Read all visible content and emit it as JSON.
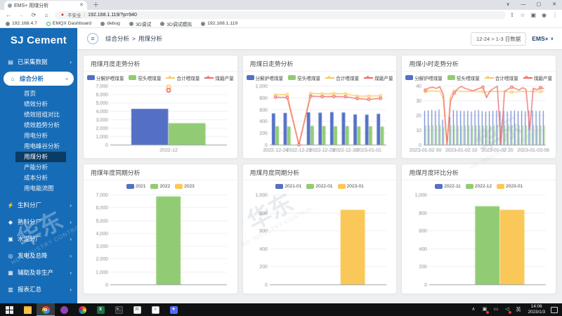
{
  "icons": {
    "back": "←",
    "forward": "→",
    "reload": "⟳",
    "home": "⌂",
    "warning": "▲",
    "divider": "|",
    "share": "⇧",
    "star": "☆",
    "side_panel": "▣",
    "profile": "◉",
    "menu": "⋮",
    "tab_search": "∨",
    "minimize": "—",
    "maximize": "▢",
    "close": "✕",
    "plus": "＋",
    "hamburger": "≡",
    "chevron_right": "›",
    "caret_down": "∨"
  },
  "browser": {
    "tab_title": "EMS+ 用煤分析",
    "security_label": "不安全",
    "url": "192.168.1.119/?p=940",
    "bookmarks": [
      "192.168.4.7",
      "EMQX Dashboard",
      "debug",
      "3D调试",
      "3D调试模拟",
      "192.168.1.119"
    ]
  },
  "header": {
    "brand": "SJ Cement",
    "breadcrumb": {
      "parent": "综合分析",
      "separator": ">",
      "current": "用煤分析"
    },
    "date_range_button": "12-24 > 1-3 日数据",
    "profile_label": "EMS+"
  },
  "sidebar": {
    "icon_glyphs": {
      "database-icon": "▤",
      "home-icon": "⌂",
      "lightning-icon": "⚡",
      "drop-icon": "◆",
      "cement-plant-icon": "▣",
      "power-icon": "◎",
      "auxiliary-icon": "▦",
      "report-icon": "▥"
    },
    "groups": [
      {
        "label": "已采集数据",
        "icon": "database-icon",
        "expanded": false
      },
      {
        "label": "综合分析",
        "icon": "home-icon",
        "expanded": true,
        "active": true,
        "children": [
          "首页",
          "绩效分析",
          "绩效班组对比",
          "绩效趋势分析",
          "用电分析",
          "用电峰谷分析",
          "用煤分析",
          "产能分析",
          "成本分析",
          "用电能流图"
        ],
        "selected": "用煤分析"
      },
      {
        "label": "生料分厂",
        "icon": "lightning-icon",
        "expanded": false
      },
      {
        "label": "熟料分厂",
        "icon": "drop-icon",
        "expanded": false
      },
      {
        "label": "水泥分厂",
        "icon": "cement-plant-icon",
        "expanded": false
      },
      {
        "label": "发电及总降",
        "icon": "power-icon",
        "expanded": false
      },
      {
        "label": "辅助及非生产",
        "icon": "auxiliary-icon",
        "expanded": false
      },
      {
        "label": "报表汇总",
        "icon": "report-icon",
        "expanded": false
      }
    ]
  },
  "palette": {
    "blue": "#5470c6",
    "green": "#91cc75",
    "yellow": "#fac858",
    "red": "#ee6666"
  },
  "watermark": {
    "cn": "华东",
    "en": "HD INDUSTRY CONTROL"
  },
  "chart_data": [
    {
      "id": "monthly-trend",
      "title": "用煤月度走势分析",
      "type": "bar",
      "categories": [
        "2022-12"
      ],
      "ylim": [
        0,
        7000
      ],
      "ystep": 1000,
      "grid": true,
      "legend_position": "top",
      "series": [
        {
          "name": "分解炉喂煤量",
          "type": "bar",
          "color": "#5470c6",
          "values": [
            4250
          ]
        },
        {
          "name": "窑头喂煤量",
          "type": "bar",
          "color": "#91cc75",
          "values": [
            2550
          ]
        },
        {
          "name": "合计喂煤量",
          "type": "scatter",
          "color": "#fac858",
          "values": [
            6850
          ]
        },
        {
          "name": "煤磨产量",
          "type": "scatter",
          "color": "#ee6666",
          "values": [
            6450
          ]
        }
      ]
    },
    {
      "id": "daily-trend",
      "title": "用煤日走势分析",
      "type": "bar",
      "categories": [
        "2022-12-24",
        "2022-12-25",
        "2022-12-26",
        "2022-12-27",
        "2022-12-28",
        "2022-12-29",
        "2022-12-30",
        "2022-12-31",
        "2023-01-01",
        "2023-01-02"
      ],
      "xtick_every": 2,
      "ylim": [
        0,
        1000
      ],
      "ystep": 200,
      "grid": true,
      "legend_position": "top",
      "series": [
        {
          "name": "分解炉喂煤量",
          "type": "bar",
          "color": "#5470c6",
          "values": [
            530,
            538,
            0,
            548,
            542,
            552,
            545,
            512,
            508,
            522
          ]
        },
        {
          "name": "窑头喂煤量",
          "type": "bar",
          "color": "#91cc75",
          "values": [
            312,
            308,
            0,
            318,
            315,
            312,
            315,
            310,
            312,
            306
          ]
        },
        {
          "name": "合计喂煤量",
          "type": "line",
          "color": "#fac858",
          "values": [
            845,
            850,
            0,
            868,
            860,
            866,
            862,
            824,
            822,
            830
          ]
        },
        {
          "name": "煤磨产量",
          "type": "line",
          "color": "#ee6666",
          "values": [
            806,
            800,
            0,
            822,
            815,
            818,
            812,
            782,
            766,
            784
          ]
        }
      ]
    },
    {
      "id": "hourly-trend",
      "title": "用煤小时走势分析",
      "type": "bar",
      "n_points": 34,
      "xticks": [
        {
          "i": 0,
          "label": "2023-01-02 00"
        },
        {
          "i": 10,
          "label": "2023-01-02 10"
        },
        {
          "i": 20,
          "label": "2023-01-02 20"
        },
        {
          "i": 30,
          "label": "2023-01-03 06"
        }
      ],
      "ylim": [
        0,
        40
      ],
      "ystep": 10,
      "grid": true,
      "legend_position": "top",
      "series": [
        {
          "name": "分解炉喂煤量",
          "type": "bar",
          "color": "#5470c6",
          "values": [
            23,
            23.2,
            23.5,
            23,
            23.8,
            17,
            0,
            19,
            23.5,
            23.2,
            23,
            22.8,
            23,
            22.5,
            23.2,
            23.5,
            22.8,
            22.5,
            22.8,
            23,
            23.2,
            22.8,
            23,
            22.6,
            23,
            23.2,
            22.8,
            23,
            22.6,
            23,
            23.2,
            22.8,
            23,
            23
          ]
        },
        {
          "name": "窑头喂煤量",
          "type": "bar",
          "color": "#91cc75",
          "values": [
            13,
            13,
            13.2,
            13,
            13.2,
            12,
            6,
            13,
            13.2,
            13,
            13,
            13,
            13.2,
            13,
            13,
            13.2,
            13,
            13,
            13,
            13.2,
            13,
            13,
            13.2,
            13,
            13,
            13,
            13.2,
            13,
            13,
            13,
            13.2,
            13,
            13,
            13
          ]
        },
        {
          "name": "合计喂煤量",
          "type": "line",
          "color": "#fac858",
          "values": [
            36,
            36.3,
            36.5,
            36.2,
            36.5,
            31,
            0,
            33,
            36.4,
            36.5,
            36.2,
            36,
            36.2,
            36.4,
            36,
            36.1,
            36,
            35.8,
            36,
            36.1,
            36,
            36,
            36.2,
            35.8,
            35.6,
            35.8,
            36,
            36.1,
            36,
            36,
            36.2,
            36,
            36,
            36.1
          ]
        },
        {
          "name": "煤磨产量",
          "type": "line",
          "color": "#ee6666",
          "values": [
            37,
            38.5,
            39,
            38.2,
            39.2,
            34,
            0,
            30,
            35,
            38,
            39.5,
            38.2,
            37.5,
            36.5,
            37.2,
            38.2,
            39,
            32,
            36.5,
            38.2,
            39.5,
            0,
            36,
            37.6,
            39,
            38.2,
            37,
            38.6,
            37.5,
            10,
            38.2,
            37.2,
            38.6,
            38
          ]
        }
      ]
    },
    {
      "id": "yearly-yoy",
      "title": "用煤年度同期分析",
      "type": "bar",
      "categories": [
        ""
      ],
      "ylim": [
        0,
        7000
      ],
      "ystep": 1000,
      "grid": true,
      "legend_position": "top",
      "series": [
        {
          "name": "2021",
          "type": "bar",
          "color": "#5470c6",
          "values": [
            null
          ]
        },
        {
          "name": "2022",
          "type": "bar",
          "color": "#91cc75",
          "values": [
            6850
          ]
        },
        {
          "name": "2023",
          "type": "bar",
          "color": "#fac858",
          "values": [
            null
          ]
        }
      ]
    },
    {
      "id": "monthly-yoy",
      "title": "用煤月度同期分析",
      "type": "bar",
      "categories": [
        ""
      ],
      "ylim": [
        0,
        1000
      ],
      "ystep": 200,
      "grid": true,
      "legend_position": "top",
      "series": [
        {
          "name": "2021-01",
          "type": "bar",
          "color": "#5470c6",
          "values": [
            null
          ]
        },
        {
          "name": "2022-01",
          "type": "bar",
          "color": "#91cc75",
          "values": [
            null
          ]
        },
        {
          "name": "2023-01",
          "type": "bar",
          "color": "#fac858",
          "values": [
            830
          ]
        }
      ]
    },
    {
      "id": "monthly-mom",
      "title": "用煤月度环比分析",
      "type": "bar",
      "categories": [
        ""
      ],
      "ylim": [
        0,
        1000
      ],
      "ystep": 200,
      "grid": true,
      "legend_position": "top",
      "series": [
        {
          "name": "2022-11",
          "type": "bar",
          "color": "#5470c6",
          "values": [
            null
          ]
        },
        {
          "name": "2022-12",
          "type": "bar",
          "color": "#91cc75",
          "values": [
            870
          ]
        },
        {
          "name": "2023-01",
          "type": "bar",
          "color": "#fac858",
          "values": [
            830
          ]
        }
      ]
    }
  ],
  "taskbar": {
    "apps": [
      {
        "name": "start",
        "glyph": ""
      },
      {
        "name": "file-explorer",
        "glyph": ""
      },
      {
        "name": "chrome",
        "glyph": "",
        "active": true
      },
      {
        "name": "mqtt-app",
        "glyph": ""
      },
      {
        "name": "color-wheel-app",
        "glyph": ""
      },
      {
        "name": "excel",
        "glyph": "X"
      },
      {
        "name": "terminal",
        "glyph": ">_"
      },
      {
        "name": "notepad",
        "glyph": "N"
      },
      {
        "name": "editor",
        "glyph": "≡"
      },
      {
        "name": "teams",
        "glyph": "✦"
      }
    ],
    "tray": [
      {
        "name": "tray-up",
        "glyph": "∧",
        "badge": false
      },
      {
        "name": "app-alert",
        "glyph": "▣",
        "badge": true
      },
      {
        "name": "chat",
        "glyph": "▭",
        "badge": false
      },
      {
        "name": "volume",
        "glyph": "◁",
        "badge": true
      },
      {
        "name": "ime-indicator",
        "glyph": "英",
        "badge": false
      }
    ],
    "time": "14:06",
    "date": "2023/1/3"
  }
}
